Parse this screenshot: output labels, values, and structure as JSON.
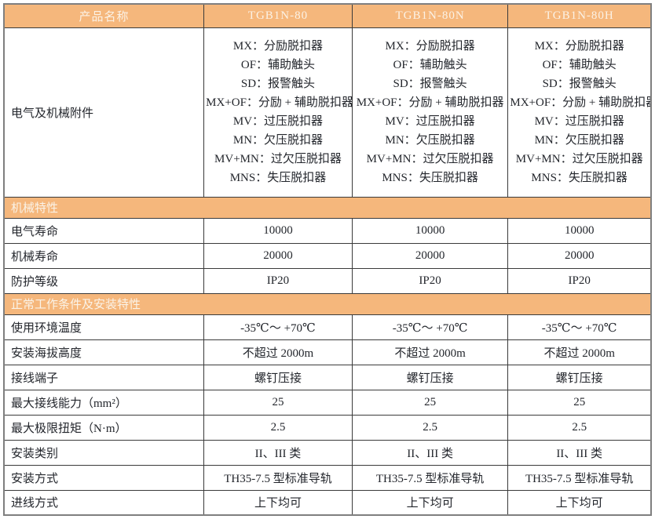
{
  "colors": {
    "header_bg": "#f5b77c",
    "header_text": "#fbf2e6",
    "border_outer": "#7f7f7f",
    "border_inner": "#3a3a3a",
    "body_text": "#23262c"
  },
  "table": {
    "header": {
      "col0": "产品名称",
      "products": [
        "TGB1N-80",
        "TGB1N-80N",
        "TGB1N-80H"
      ]
    },
    "accessories_row": {
      "label": "电气及机械附件",
      "items": [
        "MX：分励脱扣器",
        "OF：辅助触头",
        "SD：报警触头",
        "MX+OF：分励 + 辅助脱扣器",
        "MV：过压脱扣器",
        "MN：欠压脱扣器",
        "MV+MN：过欠压脱扣器",
        "MNS：失压脱扣器"
      ]
    },
    "sections": [
      {
        "title": "机械特性",
        "rows": [
          {
            "label": "电气寿命",
            "values": [
              "10000",
              "10000",
              "10000"
            ]
          },
          {
            "label": "机械寿命",
            "values": [
              "20000",
              "20000",
              "20000"
            ]
          },
          {
            "label": "防护等级",
            "values": [
              "IP20",
              "IP20",
              "IP20"
            ]
          }
        ]
      },
      {
        "title": "正常工作条件及安装特性",
        "rows": [
          {
            "label": "使用环境温度",
            "values": [
              "-35℃～ +70℃",
              "-35℃～ +70℃",
              "-35℃～ +70℃"
            ]
          },
          {
            "label": "安装海拔高度",
            "values": [
              "不超过 2000m",
              "不超过 2000m",
              "不超过 2000m"
            ]
          },
          {
            "label": "接线端子",
            "values": [
              "螺钉压接",
              "螺钉压接",
              "螺钉压接"
            ]
          },
          {
            "label": "最大接线能力（mm²）",
            "values": [
              "25",
              "25",
              "25"
            ]
          },
          {
            "label": "最大极限扭矩（N·m）",
            "values": [
              "2.5",
              "2.5",
              "2.5"
            ]
          },
          {
            "label": "安装类别",
            "values": [
              "II、III 类",
              "II、III 类",
              "II、III 类"
            ]
          },
          {
            "label": "安装方式",
            "values": [
              "TH35-7.5 型标准导轨",
              "TH35-7.5 型标准导轨",
              "TH35-7.5 型标准导轨"
            ]
          },
          {
            "label": "进线方式",
            "values": [
              "上下均可",
              "上下均可",
              "上下均可"
            ]
          }
        ]
      }
    ]
  }
}
